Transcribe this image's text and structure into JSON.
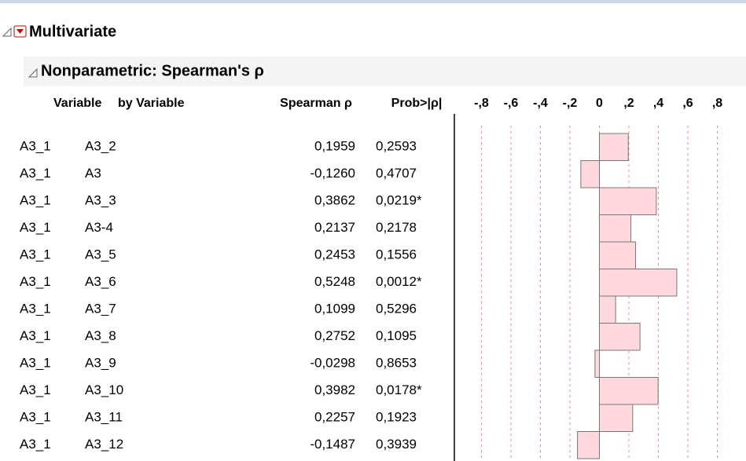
{
  "header": {
    "title": "Multivariate",
    "subtitle": "Nonparametric: Spearman's ρ"
  },
  "table": {
    "columns": [
      "Variable",
      "by Variable",
      "Spearman ρ",
      "Prob>|ρ|"
    ],
    "rows": [
      {
        "variable": "A3_1",
        "by": "A3_2",
        "rho": {
          "value": 0.1959,
          "label": "0,1959"
        },
        "prob": "0,2593"
      },
      {
        "variable": "A3_1",
        "by": "A3",
        "rho": {
          "value": -0.126,
          "label": "-0,1260"
        },
        "prob": "0,4707"
      },
      {
        "variable": "A3_1",
        "by": "A3_3",
        "rho": {
          "value": 0.3862,
          "label": "0,3862"
        },
        "prob": "0,0219*"
      },
      {
        "variable": "A3_1",
        "by": "A3-4",
        "rho": {
          "value": 0.2137,
          "label": "0,2137"
        },
        "prob": "0,2178"
      },
      {
        "variable": "A3_1",
        "by": "A3_5",
        "rho": {
          "value": 0.2453,
          "label": "0,2453"
        },
        "prob": "0,1556"
      },
      {
        "variable": "A3_1",
        "by": "A3_6",
        "rho": {
          "value": 0.5248,
          "label": "0,5248"
        },
        "prob": "0,0012*"
      },
      {
        "variable": "A3_1",
        "by": "A3_7",
        "rho": {
          "value": 0.1099,
          "label": "0,1099"
        },
        "prob": "0,5296"
      },
      {
        "variable": "A3_1",
        "by": "A3_8",
        "rho": {
          "value": 0.2752,
          "label": "0,2752"
        },
        "prob": "0,1095"
      },
      {
        "variable": "A3_1",
        "by": "A3_9",
        "rho": {
          "value": -0.0298,
          "label": "-0,0298"
        },
        "prob": "0,8653"
      },
      {
        "variable": "A3_1",
        "by": "A3_10",
        "rho": {
          "value": 0.3982,
          "label": "0,3982"
        },
        "prob": "0,0178*"
      },
      {
        "variable": "A3_1",
        "by": "A3_11",
        "rho": {
          "value": 0.2257,
          "label": "0,2257"
        },
        "prob": "0,1923"
      },
      {
        "variable": "A3_1",
        "by": "A3_12",
        "rho": {
          "value": -0.1487,
          "label": "-0,1487"
        },
        "prob": "0,3939"
      }
    ]
  },
  "chart": {
    "type": "bar",
    "xlim": [
      -1,
      1
    ],
    "color": "#ffd9dd",
    "xticks": [
      {
        "value": -0.8,
        "label": "-,8"
      },
      {
        "value": -0.6,
        "label": "-,6"
      },
      {
        "value": -0.4,
        "label": "-,4"
      },
      {
        "value": -0.2,
        "label": "-,2"
      },
      0,
      {
        "value": 0.2,
        "label": ",2"
      },
      {
        "value": 0.4,
        "label": ",4"
      },
      {
        "value": 0.6,
        "label": ",6"
      },
      {
        "value": 0.8,
        "label": ",8"
      }
    ]
  }
}
